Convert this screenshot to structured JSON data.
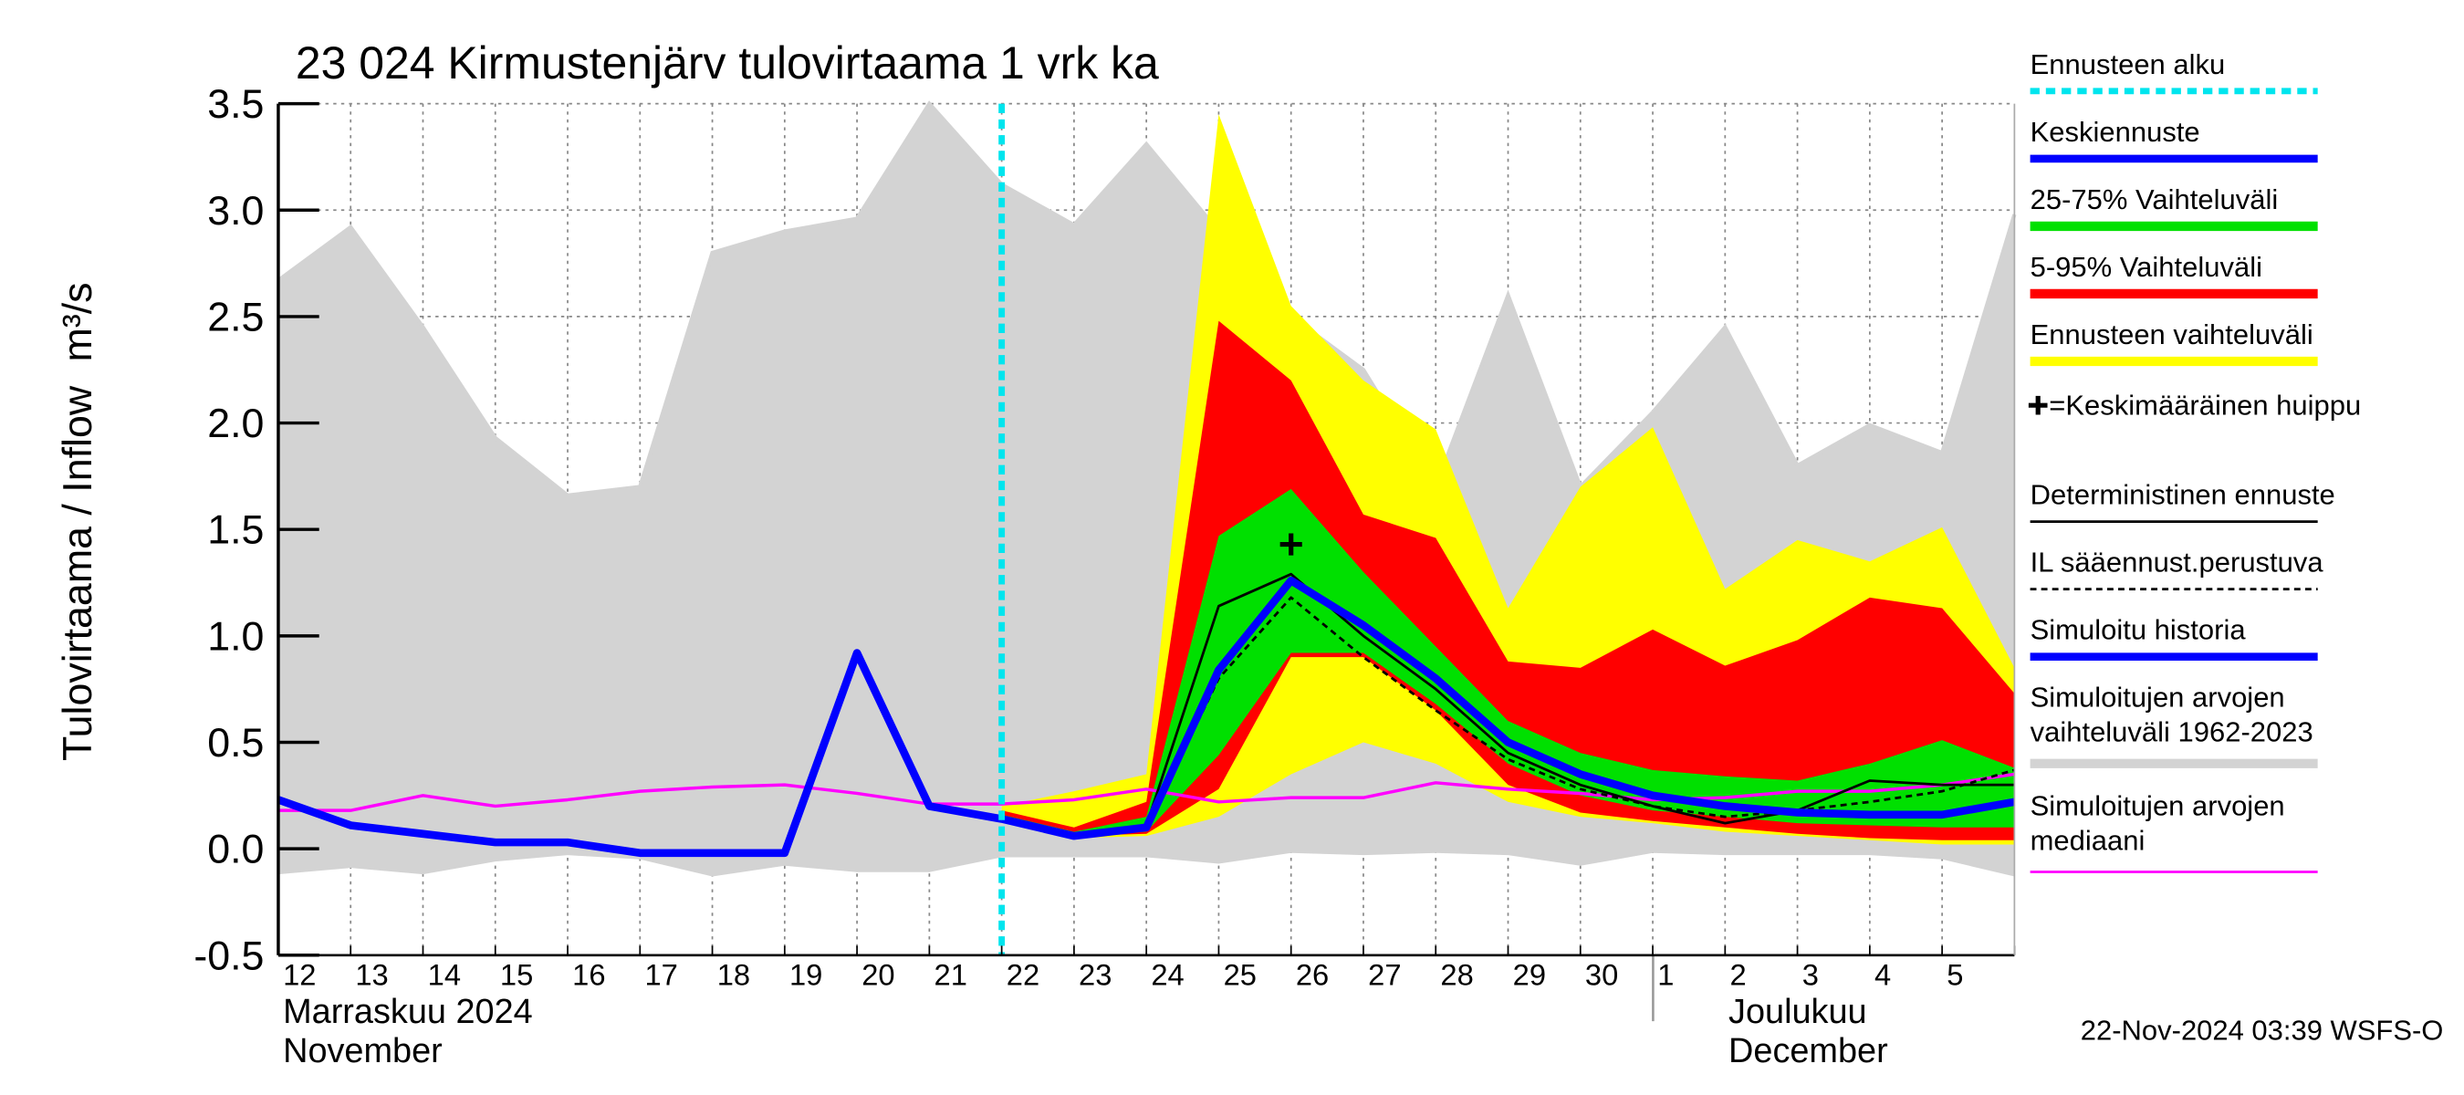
{
  "chart_data": {
    "type": "line",
    "title": "23 024 Kirmustenjärv tulovirtaama 1 vrk ka",
    "y_label": "Tulovirtaama / Inflow",
    "y_unit": "m³/s",
    "categories": [
      "12",
      "13",
      "14",
      "15",
      "16",
      "17",
      "18",
      "19",
      "20",
      "21",
      "22",
      "23",
      "24",
      "25",
      "26",
      "27",
      "28",
      "29",
      "30",
      "1",
      "2",
      "3",
      "4",
      "5",
      null
    ],
    "months": [
      {
        "label": "Marraskuu 2024",
        "label_en": "November"
      },
      {
        "label": "Joulukuu",
        "label_en": "December"
      }
    ],
    "footer": "22-Nov-2024 03:39 WSFS-O",
    "ylim": [
      -0.5,
      3.5
    ],
    "yticks": [
      -0.5,
      {
        "value": 0,
        "label": "0.0"
      },
      0.5,
      {
        "value": 1,
        "label": "1.0"
      },
      1.5,
      {
        "value": 2,
        "label": "2.0"
      },
      2.5,
      {
        "value": 3,
        "label": "3.0"
      },
      3.5
    ],
    "grid": true,
    "forecast_start": {
      "label": "Ennusteen alku",
      "color": "#00e5ee",
      "x": 10
    },
    "peak": {
      "label": "=Keskimääräinen huippu",
      "x": 14,
      "value": 1.43
    },
    "series": [
      {
        "name": "Keskiennuste",
        "color": "#0000ff",
        "kind": "line",
        "width": 5,
        "values": [
          null,
          null,
          null,
          null,
          null,
          null,
          null,
          null,
          null,
          null,
          0.14,
          0.06,
          0.1,
          0.84,
          1.26,
          1.05,
          0.8,
          0.5,
          0.35,
          0.25,
          0.2,
          0.17,
          0.16,
          0.16,
          0.22
        ]
      },
      {
        "name": "25-75% Vaihteluväli",
        "color": "#00e000",
        "kind": "band",
        "upper": [
          null,
          null,
          null,
          null,
          null,
          null,
          null,
          null,
          null,
          null,
          0.16,
          0.08,
          0.15,
          1.47,
          1.69,
          1.3,
          0.95,
          0.6,
          0.45,
          0.37,
          0.34,
          0.32,
          0.4,
          0.51,
          0.38
        ],
        "lower": [
          null,
          null,
          null,
          null,
          null,
          null,
          null,
          null,
          null,
          null,
          0.15,
          0.06,
          0.08,
          0.44,
          0.92,
          0.92,
          0.68,
          0.4,
          0.25,
          0.18,
          0.15,
          0.12,
          0.11,
          0.1,
          0.1
        ]
      },
      {
        "name": "5-95% Vaihteluväli",
        "color": "#ff0000",
        "kind": "band",
        "upper": [
          null,
          null,
          null,
          null,
          null,
          null,
          null,
          null,
          null,
          null,
          0.18,
          0.1,
          0.22,
          2.48,
          2.2,
          1.57,
          1.46,
          0.88,
          0.85,
          1.03,
          0.86,
          0.98,
          1.18,
          1.13,
          0.73
        ],
        "lower": [
          null,
          null,
          null,
          null,
          null,
          null,
          null,
          null,
          null,
          null,
          0.14,
          0.06,
          0.07,
          0.28,
          0.9,
          0.9,
          0.65,
          0.3,
          0.17,
          0.13,
          0.1,
          0.07,
          0.05,
          0.04,
          0.04
        ]
      },
      {
        "name": "Ennusteen vaihteluväli",
        "color": "#ffff00",
        "kind": "band",
        "upper": [
          null,
          null,
          null,
          null,
          null,
          null,
          null,
          null,
          null,
          null,
          0.2,
          0.27,
          0.35,
          3.45,
          2.55,
          2.2,
          1.97,
          1.13,
          1.7,
          1.98,
          1.22,
          1.45,
          1.35,
          1.51,
          0.85
        ],
        "lower": [
          null,
          null,
          null,
          null,
          null,
          null,
          null,
          null,
          null,
          null,
          0.14,
          0.05,
          0.06,
          0.15,
          0.35,
          0.5,
          0.4,
          0.22,
          0.15,
          0.12,
          0.08,
          0.06,
          0.04,
          0.02,
          0.02
        ]
      },
      {
        "name": "Deterministinen ennuste",
        "color": "#000000",
        "kind": "line",
        "width": 1.6,
        "values": [
          null,
          null,
          null,
          null,
          null,
          null,
          null,
          null,
          null,
          null,
          0.14,
          0.07,
          0.11,
          1.14,
          1.29,
          1.0,
          0.75,
          0.45,
          0.3,
          0.2,
          0.12,
          0.18,
          0.32,
          0.3,
          0.3
        ]
      },
      {
        "name": "IL sääennust.perustuva",
        "color": "#000000",
        "kind": "line",
        "width": 1.6,
        "dash": true,
        "values": [
          null,
          null,
          null,
          null,
          null,
          null,
          null,
          null,
          null,
          null,
          0.14,
          0.06,
          0.1,
          0.8,
          1.18,
          0.9,
          0.65,
          0.42,
          0.28,
          0.2,
          0.15,
          0.18,
          0.22,
          0.27,
          0.37
        ]
      },
      {
        "name": "Simuloitu historia",
        "color": "#0000ff",
        "kind": "line",
        "width": 5,
        "values": [
          0.23,
          0.11,
          0.07,
          0.03,
          0.03,
          -0.02,
          -0.02,
          -0.02,
          0.92,
          0.2,
          0.14,
          null,
          null,
          null,
          null,
          null,
          null,
          null,
          null,
          null,
          null,
          null,
          null,
          null,
          null
        ]
      },
      {
        "name": "Simuloitujen arvojen vaihteluväli 1962-2023",
        "color": "#d3d3d3",
        "kind": "band",
        "upper": [
          2.67,
          2.92,
          2.45,
          1.93,
          1.66,
          1.7,
          2.8,
          2.9,
          2.96,
          3.5,
          3.12,
          2.93,
          3.31,
          2.9,
          2.5,
          2.25,
          1.7,
          2.6,
          1.7,
          2.05,
          2.45,
          1.8,
          1.99,
          1.86,
          2.98
        ],
        "lower": [
          -0.12,
          -0.09,
          -0.12,
          -0.06,
          -0.03,
          -0.05,
          -0.13,
          -0.08,
          -0.11,
          -0.11,
          -0.04,
          -0.04,
          -0.04,
          -0.07,
          -0.02,
          -0.03,
          -0.02,
          -0.03,
          -0.08,
          -0.02,
          -0.03,
          -0.03,
          -0.03,
          -0.05,
          -0.13
        ]
      },
      {
        "name": "Simuloitujen arvojen mediaani",
        "color": "#ff00ff",
        "kind": "line",
        "width": 2,
        "values": [
          0.18,
          0.18,
          0.25,
          0.2,
          0.23,
          0.27,
          0.29,
          0.3,
          0.26,
          0.21,
          0.21,
          0.23,
          0.28,
          0.22,
          0.24,
          0.24,
          0.31,
          0.28,
          0.26,
          0.23,
          0.24,
          0.27,
          0.27,
          0.3,
          0.35
        ]
      }
    ]
  }
}
